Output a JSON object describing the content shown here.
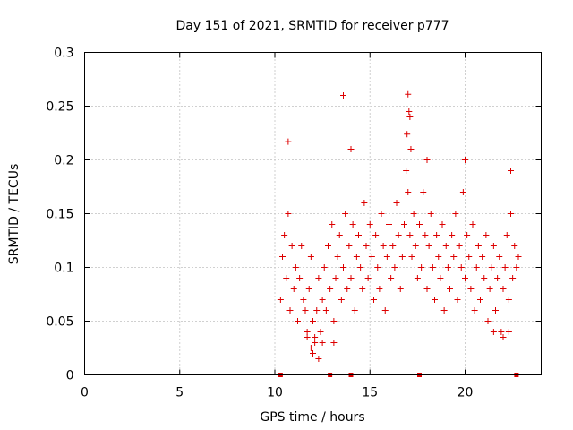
{
  "chart_data": {
    "type": "scatter",
    "title": "Day 151 of 2021, SRMTID for receiver p777",
    "xlabel": "GPS time / hours",
    "ylabel": "SRMTID / TECUs",
    "xlim": [
      0,
      24
    ],
    "ylim": [
      0,
      0.3
    ],
    "xticks": [
      0,
      5,
      10,
      15,
      20
    ],
    "yticks": [
      0,
      0.05,
      0.1,
      0.15,
      0.2,
      0.25,
      0.3
    ],
    "xtick_labels": [
      "0",
      "5",
      "10",
      "15",
      "20"
    ],
    "ytick_labels": [
      "0",
      "0.05",
      "0.1",
      "0.15",
      "0.2",
      "0.25",
      "0.3"
    ],
    "grid": true,
    "marker": "+",
    "color": "#dd0000",
    "series": [
      {
        "name": "SRMTID",
        "points": [
          [
            10.3,
            0.07
          ],
          [
            10.4,
            0.11
          ],
          [
            10.5,
            0.13
          ],
          [
            10.6,
            0.09
          ],
          [
            10.7,
            0.15
          ],
          [
            10.8,
            0.06
          ],
          [
            10.9,
            0.12
          ],
          [
            11.0,
            0.08
          ],
          [
            11.1,
            0.1
          ],
          [
            11.2,
            0.05
          ],
          [
            11.3,
            0.09
          ],
          [
            11.4,
            0.12
          ],
          [
            11.5,
            0.07
          ],
          [
            11.6,
            0.06
          ],
          [
            11.7,
            0.04
          ],
          [
            11.8,
            0.08
          ],
          [
            11.9,
            0.11
          ],
          [
            12.0,
            0.05
          ],
          [
            12.1,
            0.03
          ],
          [
            12.2,
            0.06
          ],
          [
            12.3,
            0.09
          ],
          [
            12.4,
            0.04
          ],
          [
            12.5,
            0.07
          ],
          [
            12.6,
            0.1
          ],
          [
            12.7,
            0.06
          ],
          [
            12.8,
            0.12
          ],
          [
            12.9,
            0.08
          ],
          [
            13.0,
            0.14
          ],
          [
            13.1,
            0.05
          ],
          [
            13.2,
            0.09
          ],
          [
            13.3,
            0.11
          ],
          [
            13.4,
            0.13
          ],
          [
            13.5,
            0.07
          ],
          [
            13.6,
            0.1
          ],
          [
            13.7,
            0.15
          ],
          [
            13.8,
            0.08
          ],
          [
            13.9,
            0.12
          ],
          [
            14.0,
            0.09
          ],
          [
            14.1,
            0.14
          ],
          [
            14.2,
            0.06
          ],
          [
            14.3,
            0.11
          ],
          [
            14.4,
            0.13
          ],
          [
            14.5,
            0.1
          ],
          [
            14.6,
            0.08
          ],
          [
            14.7,
            0.16
          ],
          [
            14.8,
            0.12
          ],
          [
            14.9,
            0.09
          ],
          [
            15.0,
            0.14
          ],
          [
            15.1,
            0.11
          ],
          [
            15.2,
            0.07
          ],
          [
            15.3,
            0.13
          ],
          [
            15.4,
            0.1
          ],
          [
            15.5,
            0.08
          ],
          [
            15.6,
            0.15
          ],
          [
            15.7,
            0.12
          ],
          [
            15.8,
            0.06
          ],
          [
            15.9,
            0.11
          ],
          [
            16.0,
            0.14
          ],
          [
            16.1,
            0.09
          ],
          [
            16.2,
            0.12
          ],
          [
            16.3,
            0.1
          ],
          [
            16.4,
            0.16
          ],
          [
            16.5,
            0.13
          ],
          [
            16.6,
            0.08
          ],
          [
            16.7,
            0.11
          ],
          [
            16.8,
            0.14
          ],
          [
            16.9,
            0.19
          ],
          [
            17.0,
            0.17
          ],
          [
            17.1,
            0.13
          ],
          [
            17.2,
            0.11
          ],
          [
            17.3,
            0.15
          ],
          [
            17.4,
            0.12
          ],
          [
            17.5,
            0.09
          ],
          [
            17.6,
            0.14
          ],
          [
            17.7,
            0.1
          ],
          [
            17.8,
            0.17
          ],
          [
            17.9,
            0.13
          ],
          [
            18.0,
            0.08
          ],
          [
            18.1,
            0.12
          ],
          [
            18.2,
            0.15
          ],
          [
            18.3,
            0.1
          ],
          [
            18.4,
            0.07
          ],
          [
            18.5,
            0.13
          ],
          [
            18.6,
            0.11
          ],
          [
            18.7,
            0.09
          ],
          [
            18.8,
            0.14
          ],
          [
            18.9,
            0.06
          ],
          [
            19.0,
            0.12
          ],
          [
            19.1,
            0.1
          ],
          [
            19.2,
            0.08
          ],
          [
            19.3,
            0.13
          ],
          [
            19.4,
            0.11
          ],
          [
            19.5,
            0.15
          ],
          [
            19.6,
            0.07
          ],
          [
            19.7,
            0.12
          ],
          [
            19.8,
            0.1
          ],
          [
            19.9,
            0.17
          ],
          [
            20.0,
            0.09
          ],
          [
            20.1,
            0.13
          ],
          [
            20.2,
            0.11
          ],
          [
            20.3,
            0.08
          ],
          [
            20.4,
            0.14
          ],
          [
            20.5,
            0.06
          ],
          [
            20.6,
            0.1
          ],
          [
            20.7,
            0.12
          ],
          [
            20.8,
            0.07
          ],
          [
            20.9,
            0.11
          ],
          [
            21.0,
            0.09
          ],
          [
            21.1,
            0.13
          ],
          [
            21.2,
            0.05
          ],
          [
            21.3,
            0.08
          ],
          [
            21.4,
            0.1
          ],
          [
            21.5,
            0.12
          ],
          [
            21.6,
            0.06
          ],
          [
            21.7,
            0.09
          ],
          [
            21.8,
            0.11
          ],
          [
            21.9,
            0.04
          ],
          [
            22.0,
            0.08
          ],
          [
            22.1,
            0.1
          ],
          [
            22.2,
            0.13
          ],
          [
            22.3,
            0.07
          ],
          [
            22.4,
            0.15
          ],
          [
            22.5,
            0.09
          ],
          [
            22.6,
            0.12
          ],
          [
            22.7,
            0.1
          ],
          [
            22.8,
            0.11
          ],
          [
            13.6,
            0.26
          ],
          [
            17.0,
            0.261
          ],
          [
            17.05,
            0.245
          ],
          [
            17.1,
            0.24
          ],
          [
            16.95,
            0.224
          ],
          [
            10.7,
            0.217
          ],
          [
            14.0,
            0.21
          ],
          [
            17.15,
            0.21
          ],
          [
            20.0,
            0.2
          ],
          [
            18.0,
            0.2
          ],
          [
            22.4,
            0.19
          ],
          [
            12.0,
            0.02
          ],
          [
            11.9,
            0.025
          ],
          [
            12.3,
            0.015
          ],
          [
            12.1,
            0.035
          ],
          [
            13.1,
            0.03
          ],
          [
            11.7,
            0.035
          ],
          [
            12.5,
            0.03
          ],
          [
            22.0,
            0.035
          ],
          [
            22.3,
            0.04
          ],
          [
            21.5,
            0.04
          ]
        ],
        "baseline_markers_x": [
          10.3,
          12.9,
          14.0,
          17.6,
          22.7
        ]
      }
    ]
  }
}
